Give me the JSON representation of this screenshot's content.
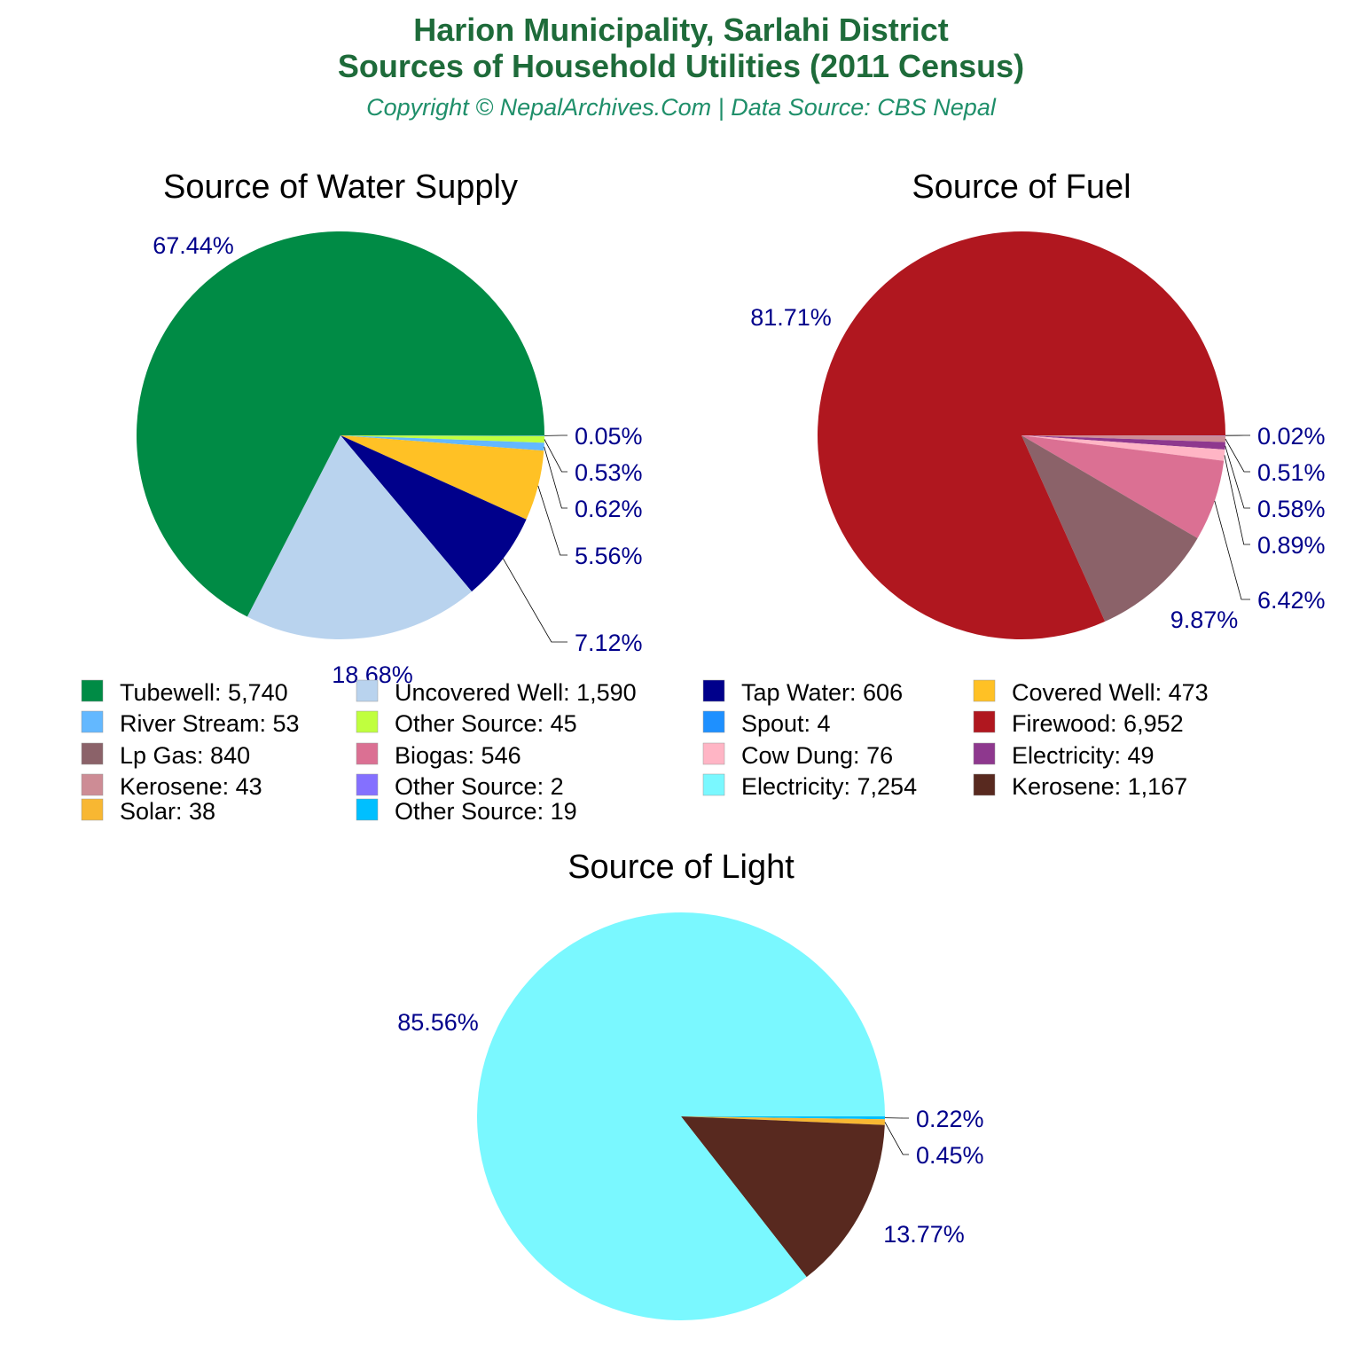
{
  "title_line1": "Harion Municipality, Sarlahi District",
  "title_line2": "Sources of Household Utilities (2011 Census)",
  "subtitle": "Copyright © NepalArchives.Com | Data Source: CBS Nepal",
  "chart_data": [
    {
      "type": "pie",
      "title": "Source of Water Supply",
      "slices": [
        {
          "label": "Spout",
          "value": 4,
          "percent": "0.05%",
          "color": "#1E90FF"
        },
        {
          "label": "Other Source",
          "value": 45,
          "percent": "0.53%",
          "color": "#C0FF3E"
        },
        {
          "label": "River Stream",
          "value": 53,
          "percent": "0.62%",
          "color": "#63B8FF"
        },
        {
          "label": "Covered Well",
          "value": 473,
          "percent": "5.56%",
          "color": "#FFC125"
        },
        {
          "label": "Tap Water",
          "value": 606,
          "percent": "7.12%",
          "color": "#00008B"
        },
        {
          "label": "Uncovered Well",
          "value": 1590,
          "percent": "18.68%",
          "color": "#B9D3EE"
        },
        {
          "label": "Tubewell",
          "value": 5740,
          "percent": "67.44%",
          "color": "#008B45"
        }
      ]
    },
    {
      "type": "pie",
      "title": "Source of Fuel",
      "slices": [
        {
          "label": "Other Source",
          "value": 2,
          "percent": "0.02%",
          "color": "#8470FF"
        },
        {
          "label": "Kerosene",
          "value": 43,
          "percent": "0.51%",
          "color": "#CD8C95"
        },
        {
          "label": "Electricity",
          "value": 49,
          "percent": "0.58%",
          "color": "#8E388E"
        },
        {
          "label": "Cow Dung",
          "value": 76,
          "percent": "0.89%",
          "color": "#FFB5C5"
        },
        {
          "label": "Biogas",
          "value": 546,
          "percent": "6.42%",
          "color": "#DB7093"
        },
        {
          "label": "Lp Gas",
          "value": 840,
          "percent": "9.87%",
          "color": "#8B6269"
        },
        {
          "label": "Firewood",
          "value": 6952,
          "percent": "81.71%",
          "color": "#B0171F"
        }
      ]
    },
    {
      "type": "pie",
      "title": "Source of Light",
      "slices": [
        {
          "label": "Other Source",
          "value": 19,
          "percent": "0.22%",
          "color": "#00BFFF"
        },
        {
          "label": "Solar",
          "value": 38,
          "percent": "0.45%",
          "color": "#F8B732"
        },
        {
          "label": "Kerosene",
          "value": 1167,
          "percent": "13.77%",
          "color": "#58291F"
        },
        {
          "label": "Electricity",
          "value": 7254,
          "percent": "85.56%",
          "color": "#7AF8FF"
        }
      ]
    }
  ],
  "legend": [
    {
      "text": "Tubewell: 5,740",
      "color": "#008B45"
    },
    {
      "text": "Uncovered Well: 1,590",
      "color": "#B9D3EE"
    },
    {
      "text": "Tap Water: 606",
      "color": "#00008B"
    },
    {
      "text": "Covered Well: 473",
      "color": "#FFC125"
    },
    {
      "text": "River Stream: 53",
      "color": "#63B8FF"
    },
    {
      "text": "Other Source: 45",
      "color": "#C0FF3E"
    },
    {
      "text": "Spout: 4",
      "color": "#1E90FF"
    },
    {
      "text": "Firewood: 6,952",
      "color": "#B0171F"
    },
    {
      "text": "Lp Gas: 840",
      "color": "#8B6269"
    },
    {
      "text": "Biogas: 546",
      "color": "#DB7093"
    },
    {
      "text": "Cow Dung: 76",
      "color": "#FFB5C5"
    },
    {
      "text": "Electricity: 49",
      "color": "#8E388E"
    },
    {
      "text": "Kerosene: 43",
      "color": "#CD8C95"
    },
    {
      "text": "Other Source: 2",
      "color": "#8470FF"
    },
    {
      "text": "Electricity: 7,254",
      "color": "#7AF8FF"
    },
    {
      "text": "Kerosene: 1,167",
      "color": "#58291F"
    },
    {
      "text": "Solar: 38",
      "color": "#F8B732"
    },
    {
      "text": "Other Source: 19",
      "color": "#00BFFF"
    }
  ]
}
